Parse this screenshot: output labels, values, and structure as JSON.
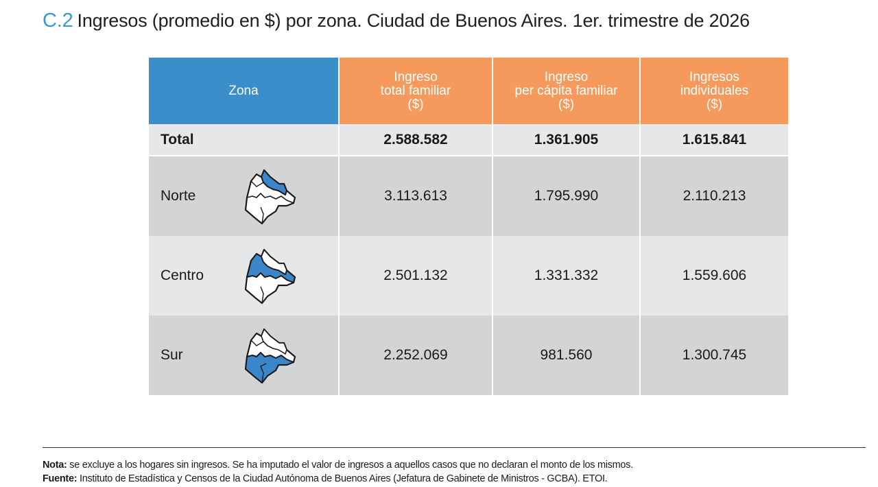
{
  "title": {
    "code": "C.2",
    "text": "Ingresos (promedio en $) por zona. Ciudad de Buenos Aires. 1er. trimestre de 2026"
  },
  "table": {
    "headers": [
      "Zona",
      "Ingreso\ntotal familiar\n($)",
      "Ingreso\nper cápita familiar\n($)",
      "Ingresos\nindividuales\n($)"
    ],
    "total": {
      "label": "Total",
      "values": [
        "2.588.582",
        "1.361.905",
        "1.615.841"
      ]
    },
    "rows": [
      {
        "zona": "Norte",
        "map_icon": "zone-norte-map-icon",
        "values": [
          "3.113.613",
          "1.795.990",
          "2.110.213"
        ]
      },
      {
        "zona": "Centro",
        "map_icon": "zone-centro-map-icon",
        "values": [
          "2.501.132",
          "1.331.332",
          "1.559.606"
        ]
      },
      {
        "zona": "Sur",
        "map_icon": "zone-sur-map-icon",
        "values": [
          "2.252.069",
          "981.560",
          "1.300.745"
        ]
      }
    ]
  },
  "notes": {
    "nota_label": "Nota:",
    "nota_text": " se excluye a los hogares sin ingresos. Se ha imputado el valor de ingresos a aquellos casos que no declaran el monto de los mismos.",
    "fuente_label": "Fuente:",
    "fuente_text": " Instituto de Estadística y Censos de la Ciudad Autónoma de Buenos Aires (Jefatura de Gabinete de Ministros - GCBA). ETOI."
  },
  "colors": {
    "title_code": "#3a97d3",
    "header_zona": "#3a8ec9",
    "header_values": "#f5995c",
    "map_highlight": "#3a86c8",
    "row_dark": "#d2d4d6",
    "row_light": "#e6e7e8"
  }
}
